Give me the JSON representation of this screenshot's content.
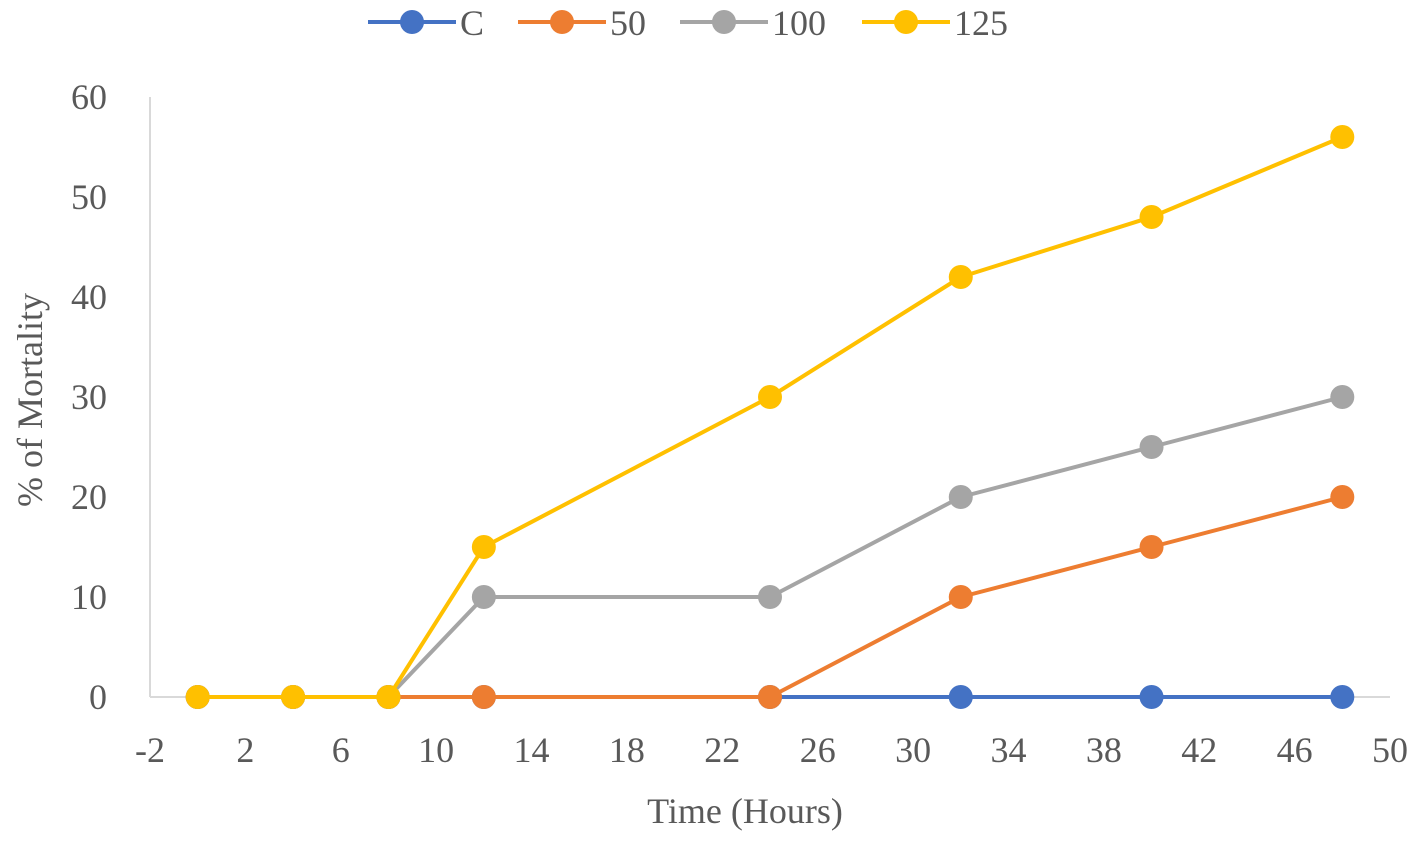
{
  "chart_data": {
    "type": "line",
    "title": "",
    "xlabel": "Time (Hours)",
    "ylabel": "% of Mortality",
    "xlim": [
      -2,
      50
    ],
    "ylim": [
      0,
      60
    ],
    "x_ticks": [
      -2,
      2,
      6,
      10,
      14,
      18,
      22,
      26,
      30,
      34,
      38,
      42,
      46,
      50
    ],
    "y_ticks": [
      0,
      10,
      20,
      30,
      40,
      50,
      60
    ],
    "x": [
      0,
      4,
      8,
      12,
      24,
      32,
      40,
      48
    ],
    "series": [
      {
        "name": "C",
        "color": "#4472C4",
        "values": [
          0,
          0,
          0,
          0,
          0,
          0,
          0,
          0
        ]
      },
      {
        "name": "50",
        "color": "#ED7D31",
        "values": [
          0,
          0,
          0,
          0,
          0,
          10,
          15,
          20
        ]
      },
      {
        "name": "100",
        "color": "#A5A5A5",
        "values": [
          0,
          0,
          0,
          10,
          10,
          20,
          25,
          30
        ]
      },
      {
        "name": "125",
        "color": "#FFC000",
        "values": [
          0,
          0,
          0,
          15,
          30,
          42,
          48,
          56
        ]
      }
    ],
    "grid": false,
    "legend": "top-center",
    "axis_color": "#D9D9D9"
  }
}
